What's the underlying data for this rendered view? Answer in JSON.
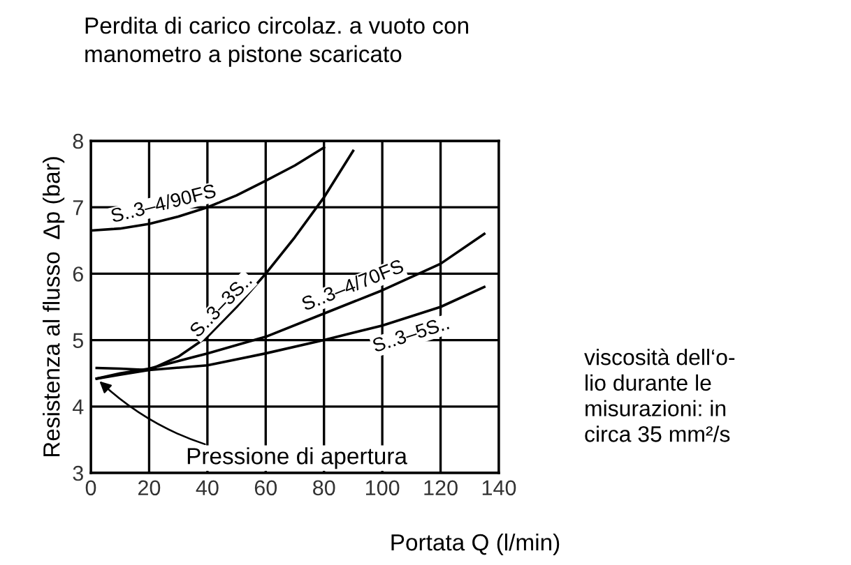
{
  "chart_data": {
    "type": "line",
    "title": "Perdita di carico circolaz. a vuoto con\nmanometro a pistone scaricato",
    "xlabel": "Portata Q (l/min)",
    "ylabel": "Resistenza al flusso  Δp (bar)",
    "series": [
      {
        "name": "S..3–4/90FS",
        "color": "#000000",
        "x": [
          0,
          10,
          20,
          30,
          40,
          50,
          60,
          70,
          80
        ],
        "values": [
          6.65,
          6.68,
          6.75,
          6.86,
          7.0,
          7.18,
          7.4,
          7.63,
          7.9
        ]
      },
      {
        "name": "S..3–3S..",
        "color": "#000000",
        "x": [
          2,
          10,
          20,
          30,
          40,
          50,
          60,
          70,
          80,
          90
        ],
        "values": [
          4.42,
          4.48,
          4.55,
          4.75,
          5.05,
          5.5,
          6.0,
          6.55,
          7.15,
          7.85
        ]
      },
      {
        "name": "S..3–4/70FS",
        "color": "#000000",
        "x": [
          2,
          10,
          20,
          40,
          60,
          80,
          100,
          120,
          135
        ],
        "values": [
          4.42,
          4.5,
          4.57,
          4.8,
          5.05,
          5.4,
          5.75,
          6.15,
          6.6
        ]
      },
      {
        "name": "S..3–5S..",
        "color": "#000000",
        "x": [
          2,
          10,
          20,
          40,
          60,
          80,
          100,
          120,
          135
        ],
        "values": [
          4.58,
          4.57,
          4.55,
          4.62,
          4.8,
          5.0,
          5.22,
          5.5,
          5.8
        ]
      }
    ],
    "annotations": [
      {
        "text": "Pressione di apertura",
        "x": 2,
        "y": 4.42
      },
      "viscosità dell‘o-\nlio durante le\nmisurazioni: in\ncirca 35 mm²/s"
    ],
    "xlim": [
      0,
      140
    ],
    "ylim": [
      3,
      8
    ],
    "xticks": [
      0,
      20,
      40,
      60,
      80,
      100,
      120,
      140
    ],
    "yticks": [
      3,
      4,
      5,
      6,
      7,
      8
    ],
    "grid": true,
    "legend": false,
    "marker": "none",
    "line_style": "solid"
  }
}
